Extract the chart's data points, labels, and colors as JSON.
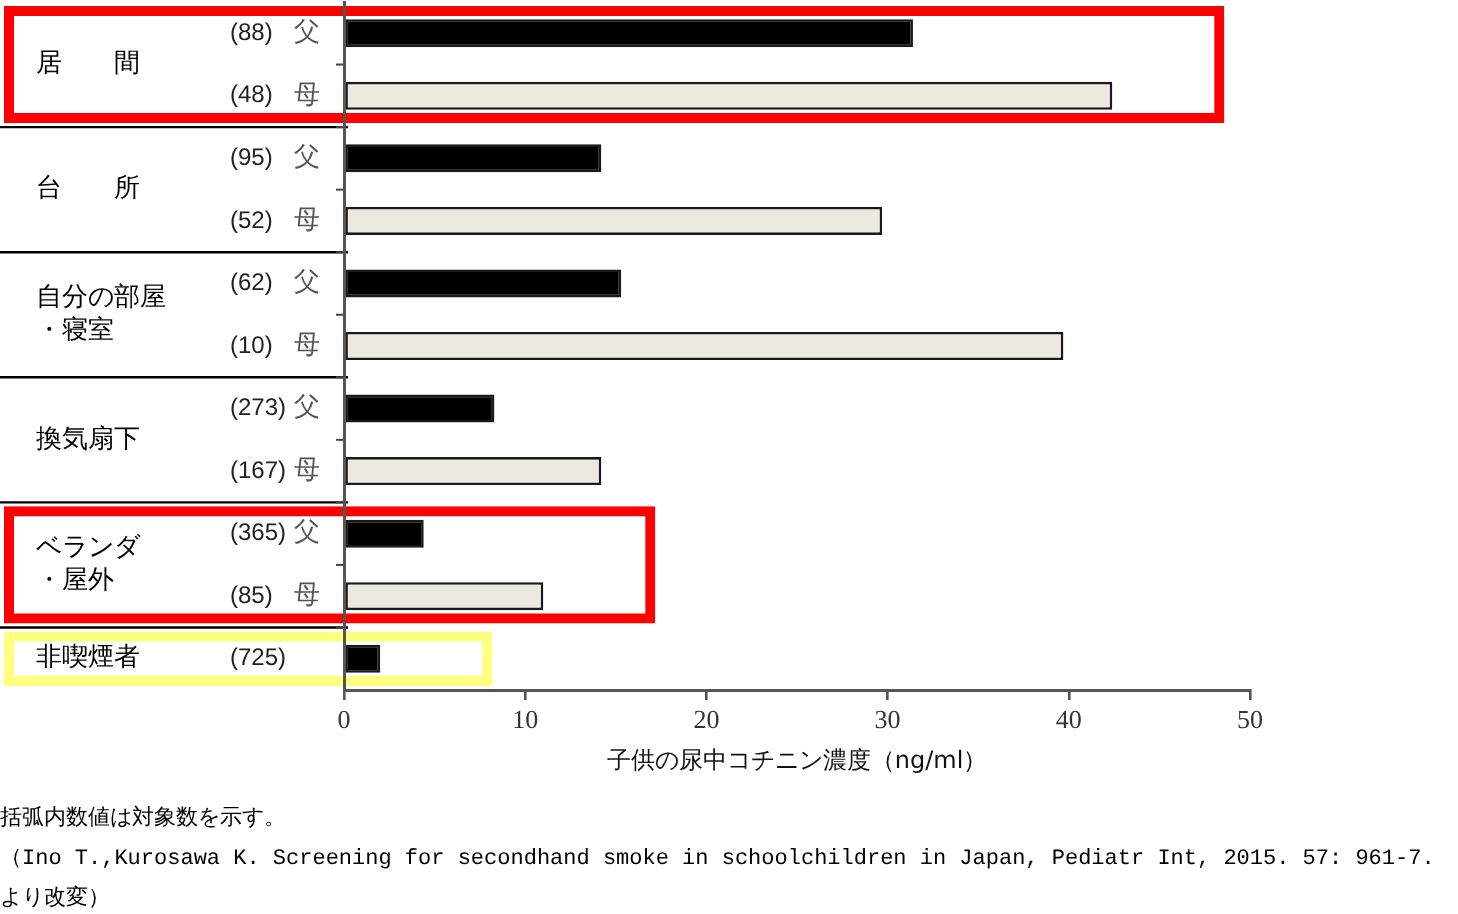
{
  "chart_data": {
    "type": "bar",
    "orientation": "horizontal",
    "categories": [
      "居　　間",
      "台　　所",
      "自分の部屋・寝室",
      "換気扇下",
      "ベランダ・屋外",
      "非喫煙者"
    ],
    "series": [
      {
        "name": "父",
        "color": "#000000",
        "values": [
          31.4,
          14.2,
          15.3,
          8.3,
          4.4,
          null
        ]
      },
      {
        "name": "母",
        "color": "#ece9e1",
        "values": [
          42.4,
          29.7,
          39.7,
          14.2,
          11.0,
          null
        ]
      },
      {
        "color": "#000000",
        "values": [
          null,
          null,
          null,
          null,
          null,
          2.0
        ]
      }
    ],
    "xlim": [
      0,
      50
    ],
    "xticks": [
      0,
      10,
      20,
      30,
      40,
      50
    ],
    "xlabel": "子供の尿中コチニン濃度（ng/ml）",
    "bands": [
      {
        "axis": "y",
        "from": "居　　間",
        "to": "居　　間",
        "color": "#ff0000"
      },
      {
        "axis": "y",
        "from": "ベランダ・屋外",
        "to": "ベランダ・屋外",
        "color": "#ff0000"
      },
      {
        "axis": "y",
        "from": "非喫煙者",
        "to": "非喫煙者",
        "color": "#ffff80"
      }
    ],
    "annotations": [
      "(88)",
      "(48)",
      "(95)",
      "(52)",
      "(62)",
      "(10)",
      "(273)",
      "(167)",
      "(365)",
      "(85)",
      "(725)",
      "括弧内数値は対象数を示す。",
      "（Ino T.,Kurosawa K. Screening for secondhand smoke in schoolchildren in Japan, Pediatr Int, 2015. 57: 961-7. より改変）"
    ]
  }
}
